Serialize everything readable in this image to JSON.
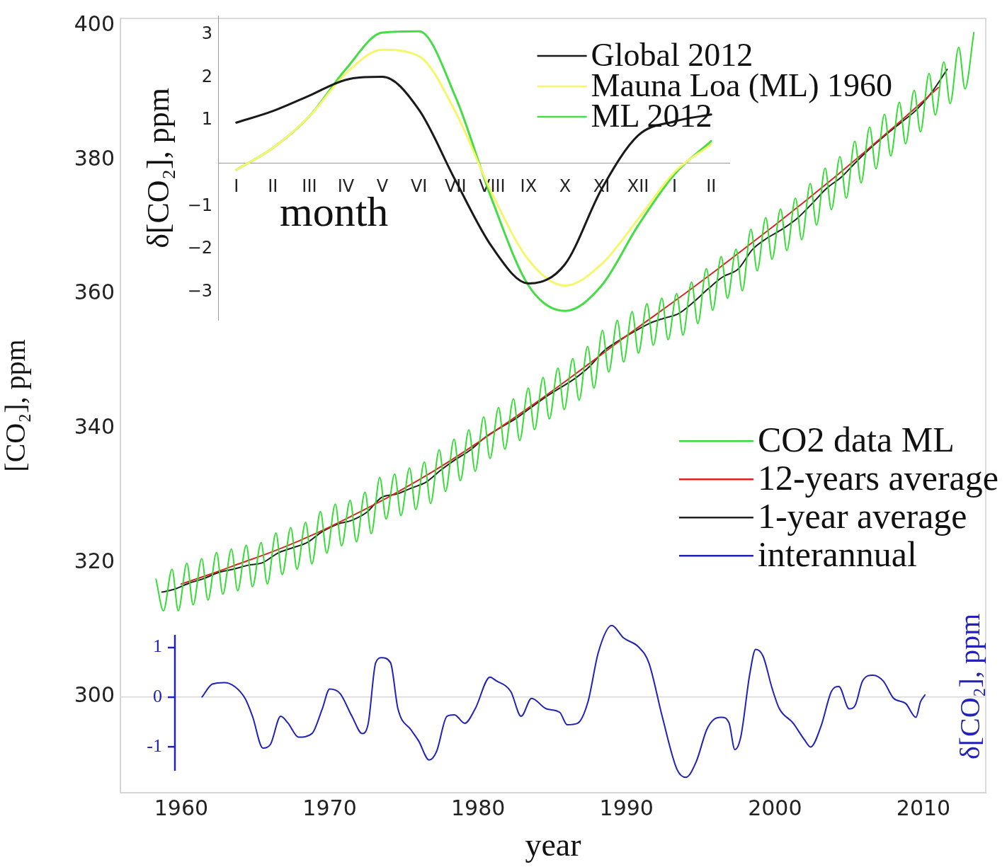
{
  "chart_data": [
    {
      "type": "line",
      "xlabel": "year",
      "ylabel": "[CO₂], ppm",
      "y2label": "δ[CO₂], ppm",
      "xlim": [
        1955.9,
        2014.2
      ],
      "xticks": [
        1960,
        1970,
        1980,
        1990,
        2000,
        2010
      ],
      "ylim": [
        285.7,
        401.1
      ],
      "yticks": [
        300,
        320,
        340,
        360,
        380,
        400
      ],
      "y2lim": [
        -1.93,
        13.68
      ],
      "y2ticks": [
        -1,
        0,
        1
      ],
      "legend": "right",
      "ref_lines": [
        {
          "axis": "y2",
          "value": 0,
          "color": "#d8d8d8"
        }
      ],
      "series": [
        {
          "name": "CO2 data ML",
          "color": "#33dd33",
          "x": [
            1958.3,
            1958.8,
            1959.38,
            1959.8,
            1960.38,
            1960.8,
            1961.38,
            1961.8,
            1962.38,
            1962.8,
            1963.38,
            1963.8,
            1964.38,
            1964.8,
            1965.38,
            1965.8,
            1966.38,
            1966.8,
            1967.38,
            1967.8,
            1968.38,
            1968.8,
            1969.38,
            1969.8,
            1970.38,
            1970.8,
            1971.38,
            1971.8,
            1972.38,
            1972.8,
            1973.38,
            1973.8,
            1974.38,
            1974.8,
            1975.38,
            1975.8,
            1976.38,
            1976.8,
            1977.38,
            1977.8,
            1978.38,
            1978.8,
            1979.38,
            1979.8,
            1980.38,
            1980.8,
            1981.38,
            1981.8,
            1982.38,
            1982.8,
            1983.38,
            1983.8,
            1984.38,
            1984.8,
            1985.38,
            1985.8,
            1986.38,
            1986.8,
            1987.38,
            1987.8,
            1988.38,
            1988.8,
            1989.38,
            1989.8,
            1990.38,
            1990.8,
            1991.38,
            1991.8,
            1992.38,
            1992.8,
            1993.38,
            1993.8,
            1994.38,
            1994.8,
            1995.38,
            1995.8,
            1996.38,
            1996.8,
            1997.38,
            1997.8,
            1998.38,
            1998.8,
            1999.38,
            1999.8,
            2000.38,
            2000.8,
            2001.38,
            2001.8,
            2002.38,
            2002.8,
            2003.38,
            2003.8,
            2004.38,
            2004.8,
            2005.38,
            2005.8,
            2006.38,
            2006.8,
            2007.38,
            2007.8,
            2008.38,
            2008.8,
            2009.38,
            2009.8,
            2010.38,
            2010.8,
            2011.38,
            2011.8,
            2012.38,
            2012.8,
            2013.4
          ],
          "values": [
            317.5,
            312.8,
            319.0,
            312.8,
            319.9,
            313.7,
            320.6,
            314.4,
            321.5,
            315.3,
            322.0,
            315.8,
            322.6,
            316.4,
            323.0,
            316.8,
            324.4,
            318.2,
            325.2,
            319.0,
            326.0,
            319.8,
            327.6,
            321.4,
            328.7,
            322.5,
            329.3,
            323.1,
            330.5,
            324.3,
            332.7,
            326.5,
            333.2,
            327.0,
            334.1,
            327.9,
            335.0,
            328.8,
            336.8,
            330.6,
            338.4,
            332.2,
            339.8,
            333.6,
            341.7,
            335.5,
            343.1,
            336.9,
            344.4,
            338.2,
            346.0,
            339.8,
            347.6,
            341.4,
            349.0,
            342.8,
            350.4,
            344.2,
            352.2,
            346.0,
            354.6,
            348.4,
            356.1,
            349.9,
            357.4,
            351.2,
            358.6,
            352.4,
            359.4,
            353.2,
            360.1,
            353.9,
            361.8,
            355.6,
            363.8,
            357.6,
            365.6,
            359.4,
            366.7,
            360.5,
            369.7,
            363.5,
            371.4,
            365.2,
            372.7,
            366.5,
            374.3,
            368.1,
            376.5,
            370.3,
            378.8,
            372.6,
            380.5,
            374.3,
            382.8,
            376.6,
            384.9,
            378.7,
            386.8,
            380.6,
            388.6,
            382.4,
            390.4,
            384.2,
            392.9,
            386.7,
            394.6,
            388.4,
            396.8,
            390.6,
            399.0
          ]
        },
        {
          "name": "12-years average",
          "color": "#dd2222",
          "x": [
            1960,
            1962,
            1964,
            1966,
            1968,
            1970,
            1972,
            1974,
            1976,
            1978,
            1980,
            1982,
            1984,
            1986,
            1988,
            1990,
            1992,
            1994,
            1996,
            1998,
            2000,
            2002,
            2004,
            2006,
            2008,
            2010,
            2011
          ],
          "values": [
            316.8,
            318.3,
            319.9,
            321.5,
            323.3,
            325.3,
            327.5,
            329.8,
            332.3,
            335.0,
            337.9,
            340.9,
            344.0,
            347.2,
            350.5,
            353.8,
            357.0,
            360.2,
            363.5,
            366.9,
            370.3,
            373.8,
            377.4,
            381.1,
            384.9,
            388.8,
            390.8
          ]
        },
        {
          "name": "1-year average",
          "color": "#222222",
          "x": [
            1958.7,
            1959.5,
            1960.5,
            1961.5,
            1962.5,
            1963.5,
            1964.5,
            1965.5,
            1966.5,
            1967.5,
            1968.5,
            1969.5,
            1970.5,
            1971.5,
            1972.5,
            1973.5,
            1974.5,
            1975.5,
            1976.5,
            1977.5,
            1978.5,
            1979.5,
            1980.5,
            1981.5,
            1982.5,
            1983.5,
            1984.5,
            1985.5,
            1986.5,
            1987.5,
            1988.5,
            1989.5,
            1990.5,
            1991.5,
            1992.5,
            1993.5,
            1994.5,
            1995.5,
            1996.5,
            1997.5,
            1998.5,
            1999.5,
            2000.5,
            2001.5,
            2002.5,
            2003.5,
            2004.5,
            2005.5,
            2006.5,
            2007.5,
            2008.5,
            2009.5,
            2010.5,
            2011.6
          ],
          "values": [
            315.6,
            316.0,
            316.9,
            317.6,
            318.5,
            319.0,
            319.6,
            320.0,
            321.4,
            322.2,
            323.0,
            324.6,
            325.7,
            326.3,
            327.5,
            329.7,
            330.2,
            331.1,
            332.0,
            333.8,
            335.4,
            336.8,
            338.7,
            340.1,
            341.4,
            343.0,
            344.6,
            346.0,
            347.4,
            349.2,
            351.6,
            353.1,
            354.4,
            355.6,
            356.4,
            357.1,
            358.8,
            360.8,
            362.6,
            363.7,
            366.7,
            368.4,
            369.7,
            371.3,
            373.5,
            375.8,
            377.5,
            379.8,
            381.9,
            383.8,
            385.6,
            387.4,
            389.9,
            393.5
          ]
        },
        {
          "name": "interannual",
          "color": "#2222bb",
          "axis": "y2",
          "x": [
            1961.4,
            1962.1,
            1962.9,
            1963.6,
            1964.3,
            1964.8,
            1965.5,
            1966.0,
            1966.7,
            1967.2,
            1967.9,
            1968.8,
            1969.5,
            1970.0,
            1970.7,
            1971.5,
            1972.2,
            1972.6,
            1973.1,
            1973.5,
            1974.1,
            1974.6,
            1975.5,
            1976.0,
            1976.7,
            1977.2,
            1977.9,
            1978.4,
            1979.1,
            1979.8,
            1980.8,
            1981.2,
            1982.2,
            1982.9,
            1983.6,
            1984.6,
            1985.5,
            1986.0,
            1986.7,
            1987.4,
            1988.1,
            1989.0,
            1989.8,
            1990.8,
            1991.5,
            1992.4,
            1993.4,
            1994.0,
            1994.7,
            1995.4,
            1995.9,
            1996.4,
            1996.9,
            1997.3,
            1997.7,
            1998.3,
            1998.7,
            1999.2,
            1999.8,
            2000.3,
            2001.2,
            2002.0,
            2002.4,
            2003.1,
            2003.8,
            2004.3,
            2005.0,
            2005.4,
            2005.9,
            2006.6,
            2007.3,
            2008.0,
            2008.8,
            2009.5,
            2009.8,
            2010.1
          ],
          "values": [
            0,
            0.26,
            0.29,
            0.21,
            -0.03,
            -0.39,
            -1.03,
            -0.96,
            -0.39,
            -0.53,
            -0.81,
            -0.74,
            -0.24,
            0.16,
            0.07,
            -0.39,
            -0.74,
            -0.53,
            0.69,
            0.79,
            0.69,
            -0.24,
            -0.67,
            -0.89,
            -1.27,
            -1.1,
            -0.39,
            -0.36,
            -0.53,
            -0.24,
            0.4,
            0.33,
            0.11,
            -0.39,
            -0.03,
            -0.24,
            -0.31,
            -0.56,
            -0.53,
            -0.1,
            0.9,
            1.44,
            1.19,
            1.01,
            0.69,
            -0.39,
            -1.46,
            -1.62,
            -1.3,
            -0.66,
            -0.45,
            -0.41,
            -0.52,
            -1.06,
            -0.8,
            0.46,
            0.96,
            0.82,
            0.18,
            -0.24,
            -0.52,
            -0.87,
            -1.01,
            -0.59,
            0.11,
            0.21,
            -0.24,
            -0.17,
            0.32,
            0.44,
            0.32,
            -0.03,
            -0.13,
            -0.41,
            -0.1,
            0.04
          ]
        }
      ]
    },
    {
      "type": "line",
      "xlabel": "month",
      "ylabel": "δ[CO₂], ppm",
      "categories": [
        "I",
        "II",
        "III",
        "IV",
        "V",
        "VI",
        "VII",
        "VIII",
        "IX",
        "X",
        "XI",
        "XII",
        "I",
        "II"
      ],
      "ylim": [
        -3.66,
        3.44
      ],
      "yticks": [
        {
          "value": -3,
          "label": "−3"
        },
        {
          "value": -2,
          "label": "−2"
        },
        {
          "value": -1,
          "label": "−1"
        },
        1,
        2,
        3
      ],
      "legend": "top right",
      "series": [
        {
          "name": "Global 2012",
          "color": "#1a1a1a",
          "values": [
            0.95,
            1.22,
            1.58,
            1.95,
            2.02,
            1.25,
            -0.4,
            -1.95,
            -2.8,
            -2.35,
            -0.6,
            0.65,
            0.98,
            1.14
          ]
        },
        {
          "name": "Mauna Loa (ML) 1960",
          "color": "#f6f66a",
          "values": [
            -0.15,
            0.36,
            1.1,
            2.1,
            2.65,
            2.5,
            1.2,
            -0.7,
            -2.25,
            -2.85,
            -2.35,
            -1.3,
            -0.2,
            0.44
          ]
        },
        {
          "name": "ML 2012",
          "color": "#44dd44",
          "values": [
            -0.15,
            0.36,
            1.1,
            2.2,
            3.05,
            3.08,
            1.55,
            -0.85,
            -2.85,
            -3.44,
            -2.85,
            -1.45,
            -0.25,
            0.52
          ]
        }
      ]
    }
  ]
}
